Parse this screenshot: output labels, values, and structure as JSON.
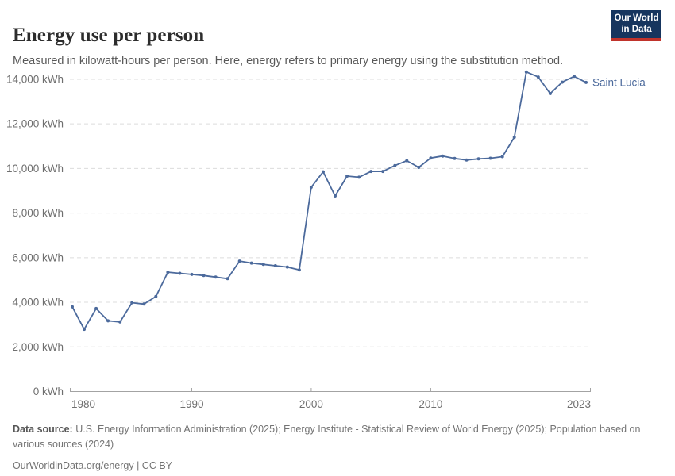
{
  "header": {
    "title": "Energy use per person",
    "subtitle": "Measured in kilowatt-hours per person. Here, energy refers to primary energy using the substitution method.",
    "logo_line1": "Our World",
    "logo_line2": "in Data"
  },
  "colors": {
    "series_blue": "#4c6a9c",
    "logo_navy": "#16355e",
    "logo_red": "#c0332b",
    "gridline": "#dcdcdc",
    "axis": "#a3a3a3",
    "tick_label": "#6f6f6f"
  },
  "chart_data": {
    "type": "line",
    "title": "Energy use per person",
    "unit": "kWh",
    "xlabel": "",
    "ylabel": "kWh",
    "grid": "horizontal-dashed",
    "legend_position": "end-of-line-label",
    "ylim": [
      0,
      14000
    ],
    "yticks": [
      0,
      2000,
      4000,
      6000,
      8000,
      10000,
      12000,
      14000
    ],
    "ytick_labels": [
      "0 kWh",
      "2,000 kWh",
      "4,000 kWh",
      "6,000 kWh",
      "8,000 kWh",
      "10,000 kWh",
      "12,000 kWh",
      "14,000 kWh"
    ],
    "xticks": [
      1980,
      1990,
      2000,
      2010,
      2023
    ],
    "xtick_labels": [
      "1980",
      "1990",
      "2000",
      "2010",
      "2023"
    ],
    "x": [
      1980,
      1981,
      1982,
      1983,
      1984,
      1985,
      1986,
      1987,
      1988,
      1989,
      1990,
      1991,
      1992,
      1993,
      1994,
      1995,
      1996,
      1997,
      1998,
      1999,
      2000,
      2001,
      2002,
      2003,
      2004,
      2005,
      2006,
      2007,
      2008,
      2009,
      2010,
      2011,
      2012,
      2013,
      2014,
      2015,
      2016,
      2017,
      2018,
      2019,
      2020,
      2021,
      2022,
      2023
    ],
    "series": [
      {
        "name": "Saint Lucia",
        "color": "#4c6a9c",
        "values": [
          3800,
          2790,
          3720,
          3170,
          3120,
          3980,
          3920,
          4260,
          5350,
          5300,
          5250,
          5200,
          5130,
          5060,
          5850,
          5760,
          5700,
          5640,
          5580,
          5450,
          9160,
          9850,
          8770,
          9660,
          9610,
          9870,
          9870,
          10130,
          10350,
          10050,
          10470,
          10560,
          10450,
          10380,
          10430,
          10460,
          10530,
          11400,
          14330,
          14100,
          13360,
          13870,
          14130,
          13860
        ]
      }
    ]
  },
  "footer": {
    "source_label": "Data source:",
    "source_text": " U.S. Energy Information Administration (2025); Energy Institute - Statistical Review of World Energy (2025); Population based on various sources (2024)",
    "license_line": "OurWorldinData.org/energy | CC BY"
  }
}
